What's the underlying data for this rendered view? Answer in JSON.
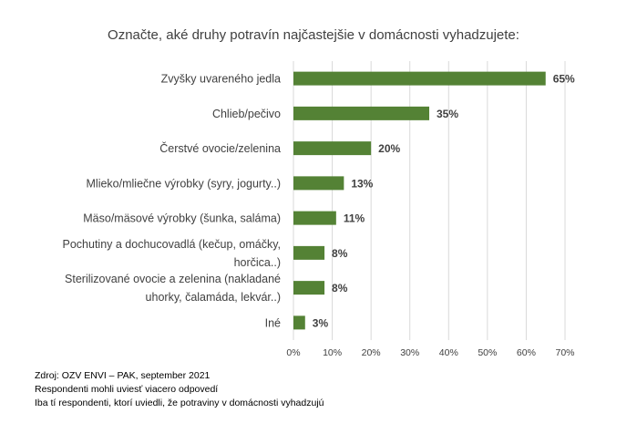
{
  "chart_data": {
    "type": "bar",
    "orientation": "horizontal",
    "title": "Označte, aké druhy potravín najčastejšie v domácnosti vyhadzujete:",
    "categories": [
      [
        "Zvyšky uvareného jedla"
      ],
      [
        "Chlieb/pečivo"
      ],
      [
        "Čerstvé ovocie/zelenina"
      ],
      [
        "Mlieko/mliečne výrobky (syry, jogurty..)"
      ],
      [
        "Mäso/mäsové výrobky (šunka, saláma)"
      ],
      [
        "Pochutiny a dochucovadlá (kečup, omáčky,",
        "horčica..)"
      ],
      [
        "Sterilizované ovocie a zelenina (nakladané",
        "uhorky, čalamáda, lekvár..)"
      ],
      [
        "Iné"
      ]
    ],
    "values": [
      65,
      35,
      20,
      13,
      11,
      8,
      8,
      3
    ],
    "value_labels": [
      "65%",
      "35%",
      "20%",
      "13%",
      "11%",
      "8%",
      "8%",
      "3%"
    ],
    "xlim": [
      0,
      70
    ],
    "xticks": [
      "0%",
      "10%",
      "20%",
      "30%",
      "40%",
      "50%",
      "60%",
      "70%"
    ],
    "grid": true,
    "bar_color": "#548235",
    "grid_color": "#d9d9d9"
  },
  "notes": [
    "Zdroj: OZV ENVI – PAK, september 2021",
    "Respondenti mohli uviesť viacero odpovedí",
    "Iba tí respondenti, ktorí uviedli, že potraviny v domácnosti vyhadzujú"
  ]
}
